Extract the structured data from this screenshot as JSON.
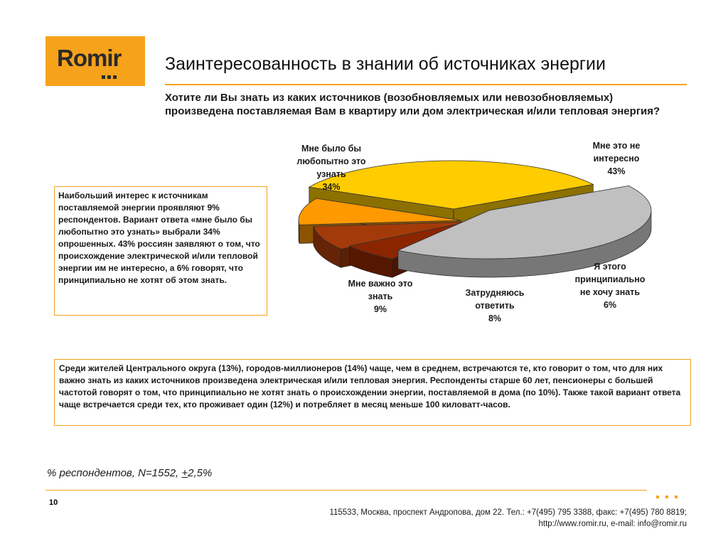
{
  "logo": {
    "text": "Romir"
  },
  "title": "Заинтересованность в знании об источниках энергии",
  "question": "Хотите ли Вы знать из каких источников (возобновляемых или невозобновляемых) произведена поставляемая Вам в квартиру или дом электрическая и/или тепловая энергия?",
  "note_left": "Наибольший интерес к источникам поставляемой энергии проявляют 9% респондентов. Вариант ответа «мне было бы любопытно это узнать» выбрали 34% опрошенных. 43% россиян заявляют о том, что происхождение электрической и/или тепловой энергии им не интересно, а 6% говорят, что принципиально не хотят об этом знать.",
  "note_bottom": "Среди жителей Центрального округа (13%), городов-миллионеров (14%) чаще, чем в среднем, встречаются те, кто говорит о том, что для них важно знать из каких источников произведена электрическая и/или тепловая энергия. Респонденты старше 60 лет, пенсионеры с большей частотой говорят о том, что принципиально  не хотят  знать о происхождении энергии, поставляемой в дома (по 10%). Также такой вариант ответа чаще встречается среди тех, кто проживает один (12%) и потребляет в месяц меньше 100 киловатт-часов.",
  "footnote": {
    "prefix": "% респондентов, N=1552, ",
    "pm": "+",
    "suffix": "2,5%"
  },
  "page_number": "10",
  "footer": {
    "address": "115533, Москва, проспект Андропова, дом 22.   Тел.: +7(495) 795 3388, факс: +7(495) 780 8819;",
    "web": "http://www.romir.ru, e-mail: info@romir.ru"
  },
  "colors": {
    "accent": "#F7A21B"
  },
  "chart_data": {
    "type": "pie",
    "style": "3d-exploded",
    "legend": "labels next to slices",
    "slices": [
      {
        "name": "Мне было бы любопытно это узнать",
        "label_lines": [
          "Мне было бы",
          "любопытно это",
          "узнать"
        ],
        "value": 34,
        "label": "34%",
        "color": "#FFCC00"
      },
      {
        "name": "Мне это не интересно",
        "label_lines": [
          "Мне это не",
          "интересно"
        ],
        "value": 43,
        "label": "43%",
        "color": "#C0C0C0"
      },
      {
        "name": "Я этого принципиально не хочу знать",
        "label_lines": [
          "Я этого",
          "принципиально",
          "не хочу знать"
        ],
        "value": 6,
        "label": "6%",
        "color": "#8B2500"
      },
      {
        "name": "Затрудняюсь ответить",
        "label_lines": [
          "Затрудняюсь",
          "ответить"
        ],
        "value": 8,
        "label": "8%",
        "color": "#A33A0A"
      },
      {
        "name": "Мне важно это знать",
        "label_lines": [
          "Мне важно это",
          "знать"
        ],
        "value": 9,
        "label": "9%",
        "color": "#FF9900"
      }
    ]
  }
}
